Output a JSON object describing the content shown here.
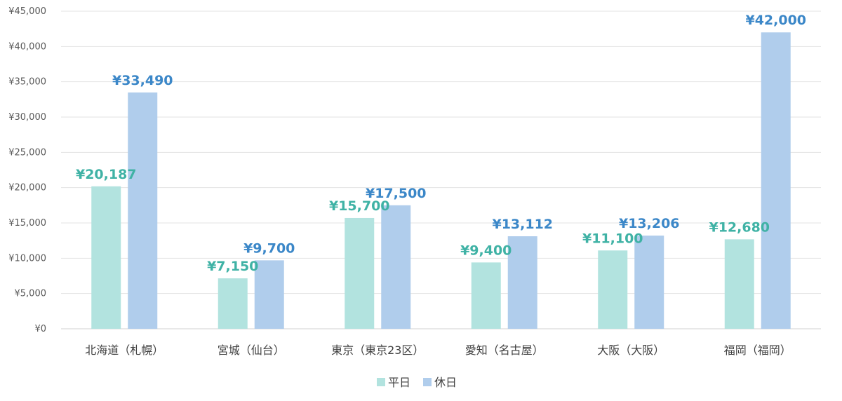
{
  "chart_data": {
    "type": "bar",
    "categories": [
      "北海道（札幌）",
      "宮城（仙台）",
      "東京（東京23区）",
      "愛知（名古屋）",
      "大阪（大阪）",
      "福岡（福岡）"
    ],
    "series": [
      {
        "name": "平日",
        "values": [
          20187,
          7150,
          15700,
          9400,
          11100,
          12680
        ],
        "labels": [
          "¥20,187",
          "¥7,150",
          "¥15,700",
          "¥9,400",
          "¥11,100",
          "¥12,680"
        ],
        "color": "#b2e3df",
        "label_color": "#3fb2a5"
      },
      {
        "name": "休日",
        "values": [
          33490,
          9700,
          17500,
          13112,
          13206,
          42000
        ],
        "labels": [
          "¥33,490",
          "¥9,700",
          "¥17,500",
          "¥13,112",
          "¥13,206",
          "¥42,000"
        ],
        "color": "#b0cdec",
        "label_color": "#3b87c8"
      }
    ],
    "ylim": [
      0,
      45000
    ],
    "yticks": [
      0,
      5000,
      10000,
      15000,
      20000,
      25000,
      30000,
      35000,
      40000,
      45000
    ],
    "ytick_labels": [
      "¥0",
      "¥5,000",
      "¥10,000",
      "¥15,000",
      "¥20,000",
      "¥25,000",
      "¥30,000",
      "¥35,000",
      "¥40,000",
      "¥45,000"
    ],
    "grid": true,
    "legend_position": "bottom-center"
  }
}
